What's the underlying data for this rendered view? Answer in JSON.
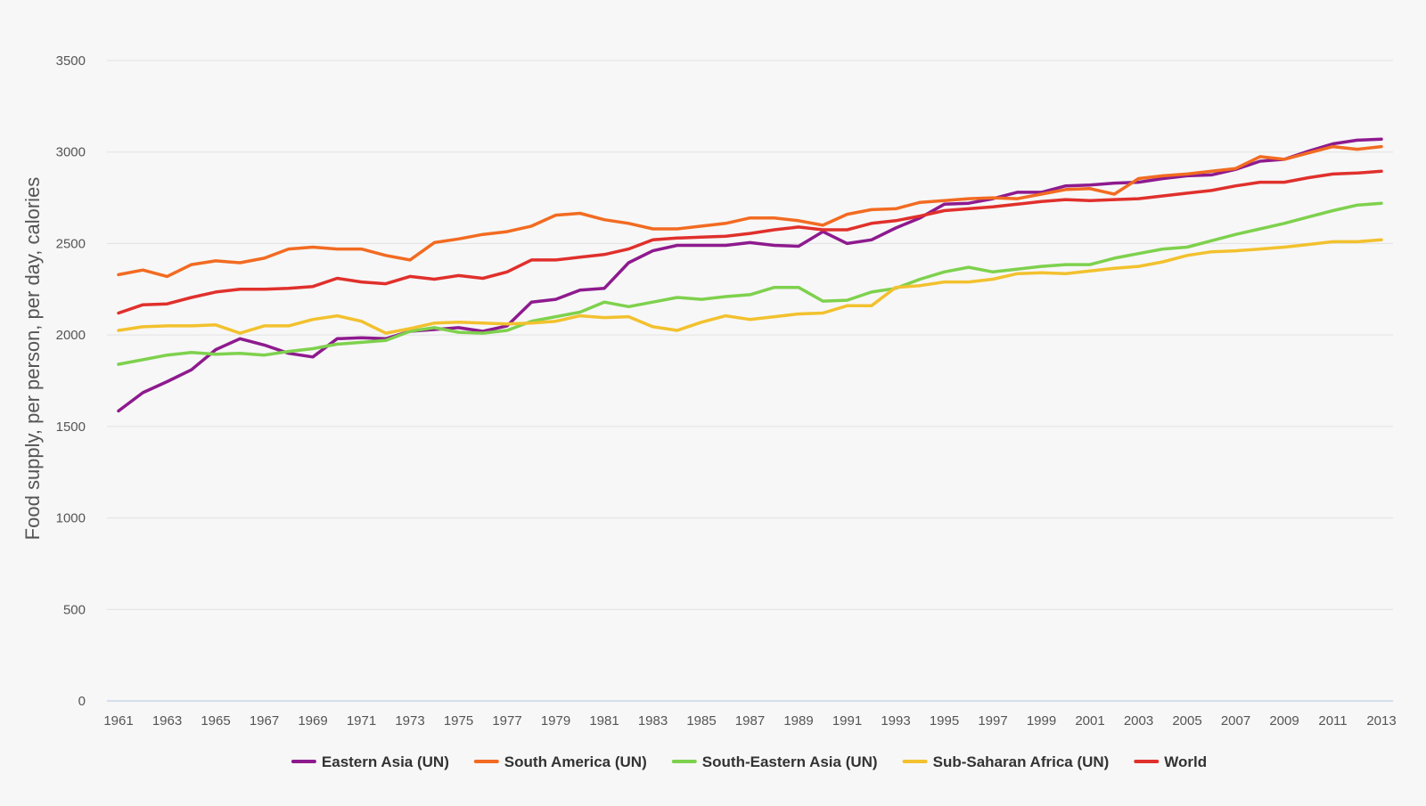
{
  "chart_data": {
    "type": "line",
    "title": "",
    "xlabel": "",
    "ylabel": "Food supply, per person, per day, calories",
    "xlim": [
      1961,
      2013
    ],
    "ylim": [
      0,
      3500
    ],
    "x_ticks": [
      1961,
      1963,
      1965,
      1967,
      1969,
      1971,
      1973,
      1975,
      1977,
      1979,
      1981,
      1983,
      1985,
      1987,
      1989,
      1991,
      1993,
      1995,
      1997,
      1999,
      2001,
      2003,
      2005,
      2007,
      2009,
      2011,
      2013
    ],
    "y_ticks": [
      0,
      500,
      1000,
      1500,
      2000,
      2500,
      3000,
      3500
    ],
    "grid": true,
    "legend_position": "bottom",
    "x": [
      1961,
      1962,
      1963,
      1964,
      1965,
      1966,
      1967,
      1968,
      1969,
      1970,
      1971,
      1972,
      1973,
      1974,
      1975,
      1976,
      1977,
      1978,
      1979,
      1980,
      1981,
      1982,
      1983,
      1984,
      1985,
      1986,
      1987,
      1988,
      1989,
      1990,
      1991,
      1992,
      1993,
      1994,
      1995,
      1996,
      1997,
      1998,
      1999,
      2000,
      2001,
      2002,
      2003,
      2004,
      2005,
      2006,
      2007,
      2008,
      2009,
      2010,
      2011,
      2012,
      2013
    ],
    "series": [
      {
        "name": "Eastern Asia (UN)",
        "color": "#8e1a8e",
        "values": [
          1585,
          1685,
          1745,
          1810,
          1920,
          1980,
          1945,
          1900,
          1880,
          1980,
          1985,
          1980,
          2020,
          2030,
          2040,
          2020,
          2050,
          2180,
          2195,
          2245,
          2255,
          2395,
          2460,
          2490,
          2490,
          2490,
          2505,
          2490,
          2485,
          2565,
          2500,
          2520,
          2585,
          2640,
          2715,
          2720,
          2745,
          2780,
          2780,
          2815,
          2820,
          2830,
          2835,
          2855,
          2870,
          2875,
          2905,
          2950,
          2960,
          3005,
          3045,
          3065,
          3070
        ]
      },
      {
        "name": "South America (UN)",
        "color": "#f26b21",
        "values": [
          2330,
          2355,
          2320,
          2385,
          2405,
          2395,
          2420,
          2470,
          2480,
          2470,
          2470,
          2435,
          2410,
          2505,
          2525,
          2550,
          2565,
          2595,
          2655,
          2665,
          2630,
          2610,
          2580,
          2580,
          2595,
          2610,
          2640,
          2640,
          2625,
          2600,
          2660,
          2685,
          2690,
          2725,
          2735,
          2745,
          2750,
          2745,
          2770,
          2795,
          2800,
          2770,
          2855,
          2870,
          2880,
          2895,
          2910,
          2975,
          2960,
          2995,
          3030,
          3015,
          3030
        ]
      },
      {
        "name": "South-Eastern Asia (UN)",
        "color": "#7ed14d",
        "values": [
          1840,
          1865,
          1890,
          1905,
          1895,
          1900,
          1890,
          1910,
          1925,
          1950,
          1960,
          1970,
          2020,
          2040,
          2015,
          2010,
          2025,
          2075,
          2100,
          2125,
          2180,
          2155,
          2180,
          2205,
          2195,
          2210,
          2220,
          2260,
          2260,
          2185,
          2190,
          2235,
          2255,
          2305,
          2345,
          2370,
          2345,
          2360,
          2375,
          2385,
          2385,
          2420,
          2445,
          2470,
          2480,
          2515,
          2550,
          2580,
          2610,
          2645,
          2680,
          2710,
          2720
        ]
      },
      {
        "name": "Sub-Saharan Africa (UN)",
        "color": "#f2c12e",
        "values": [
          2025,
          2045,
          2050,
          2050,
          2055,
          2010,
          2050,
          2050,
          2085,
          2105,
          2075,
          2010,
          2035,
          2065,
          2070,
          2065,
          2060,
          2065,
          2075,
          2105,
          2095,
          2100,
          2045,
          2025,
          2070,
          2105,
          2085,
          2100,
          2115,
          2120,
          2160,
          2160,
          2260,
          2270,
          2290,
          2290,
          2305,
          2335,
          2340,
          2335,
          2350,
          2365,
          2375,
          2400,
          2435,
          2455,
          2460,
          2470,
          2480,
          2495,
          2510,
          2510,
          2520
        ]
      },
      {
        "name": "World",
        "color": "#e0302c",
        "values": [
          2120,
          2165,
          2170,
          2205,
          2235,
          2250,
          2250,
          2255,
          2265,
          2310,
          2290,
          2280,
          2320,
          2305,
          2325,
          2310,
          2345,
          2410,
          2410,
          2425,
          2440,
          2470,
          2520,
          2530,
          2535,
          2540,
          2555,
          2575,
          2590,
          2575,
          2575,
          2610,
          2625,
          2650,
          2680,
          2690,
          2700,
          2715,
          2730,
          2740,
          2735,
          2740,
          2745,
          2760,
          2775,
          2790,
          2815,
          2835,
          2835,
          2860,
          2880,
          2885,
          2895
        ]
      }
    ]
  }
}
